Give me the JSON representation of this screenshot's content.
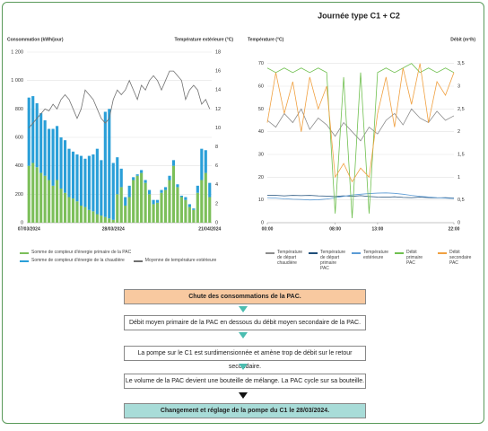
{
  "chart_data": [
    {
      "type": "bar",
      "stacked": true,
      "ylabel": "Consommation (kWh/jour)",
      "y2label": "Température extérieure (°C)",
      "categories": [
        "07/03/2024",
        null,
        null,
        null,
        null,
        null,
        null,
        null,
        null,
        null,
        null,
        null,
        null,
        null,
        null,
        null,
        null,
        null,
        null,
        null,
        null,
        "28/03/2024",
        null,
        null,
        null,
        null,
        null,
        null,
        null,
        null,
        null,
        null,
        null,
        null,
        null,
        null,
        null,
        null,
        null,
        null,
        null,
        null,
        null,
        null,
        null,
        "21/04/2024"
      ],
      "series": [
        {
          "name": "Somme de compteur d'énergie primaire de la PAC",
          "color": "#7cbf5a",
          "values": [
            400,
            420,
            390,
            350,
            330,
            300,
            260,
            300,
            240,
            210,
            180,
            170,
            150,
            120,
            110,
            90,
            80,
            60,
            50,
            40,
            30,
            20,
            200,
            250,
            120,
            180,
            300,
            330,
            350,
            280,
            200,
            130,
            140,
            210,
            230,
            300,
            400,
            250,
            180,
            160,
            110,
            90,
            210,
            300,
            350,
            180
          ]
        },
        {
          "name": "Somme de compteur d'énergie de la chaudière",
          "color": "#2a9fd8",
          "values": [
            480,
            470,
            450,
            420,
            390,
            360,
            400,
            380,
            360,
            370,
            340,
            330,
            330,
            350,
            340,
            380,
            400,
            460,
            390,
            740,
            770,
            400,
            260,
            130,
            60,
            80,
            20,
            10,
            20,
            20,
            30,
            30,
            20,
            20,
            20,
            30,
            40,
            20,
            10,
            20,
            20,
            10,
            50,
            220,
            160,
            100
          ]
        },
        {
          "name": "Moyenne de température extérieure",
          "color": "#707070",
          "type": "line",
          "axis": "y2",
          "values": [
            10,
            10.5,
            11,
            11.5,
            12,
            11.8,
            12.5,
            12,
            13,
            13.5,
            13,
            12,
            11,
            12,
            14,
            13.5,
            13,
            12,
            11,
            10.5,
            11,
            13,
            14,
            13.5,
            14,
            15,
            14,
            13,
            14.5,
            14,
            15,
            15.5,
            15,
            14,
            15,
            16,
            16,
            15.5,
            15,
            13,
            14,
            14.5,
            14,
            12.5,
            13,
            12
          ]
        }
      ],
      "ylim": [
        0,
        1200
      ],
      "yticks": [
        0,
        200,
        400,
        600,
        800,
        {
          "value": 1000,
          "label": "1 000"
        },
        {
          "value": 1200,
          "label": "1 200"
        }
      ],
      "y2lim": [
        0,
        18
      ],
      "y2ticks": [
        0,
        2,
        4,
        6,
        8,
        10,
        12,
        14,
        16,
        18
      ],
      "grid": true
    },
    {
      "type": "line",
      "title": "Journée type C1 + C2",
      "ylabel": "Température (°C)",
      "y2label": "Débit (m³/h)",
      "x": [
        0,
        1,
        2,
        3,
        4,
        5,
        6,
        7,
        8,
        9,
        10,
        11,
        12,
        13,
        14,
        15,
        16,
        17,
        18,
        19,
        20,
        21,
        22
      ],
      "xlim": [
        0,
        22
      ],
      "xticks": [
        {
          "value": 0,
          "label": "00:00"
        },
        {
          "value": 8,
          "label": "08:00"
        },
        {
          "value": 13,
          "label": "13:00"
        },
        {
          "value": 22,
          "label": "22:00"
        }
      ],
      "series": [
        {
          "name": "Température de départ chaudière",
          "color": "#8c8c8c",
          "values": [
            45,
            42,
            48,
            44,
            50,
            41,
            46,
            43,
            38,
            44,
            40,
            36,
            42,
            39,
            45,
            48,
            43,
            50,
            46,
            44,
            49,
            45,
            47
          ]
        },
        {
          "name": "Température de départ primaire PAC",
          "color": "#1f4e79",
          "values": [
            12,
            12,
            11.8,
            12,
            11.9,
            12,
            11.8,
            11.7,
            11.5,
            11.8,
            11.6,
            11.9,
            11.5,
            11.3,
            11.2,
            11.4,
            11.1,
            11,
            11.2,
            11,
            10.9,
            11,
            10.8
          ]
        },
        {
          "name": "Température extérieure",
          "color": "#5b9bd5",
          "values": [
            11,
            10.8,
            10.5,
            10.3,
            10.2,
            10,
            10.1,
            10.4,
            11,
            11.6,
            12.2,
            12.5,
            12.8,
            13,
            13.1,
            12.9,
            12.5,
            12,
            11.6,
            11.3,
            11,
            10.8,
            10.6
          ]
        },
        {
          "name": "Débit primaire PAC",
          "color": "#70c050",
          "axis": "y2",
          "values": [
            3.4,
            3.3,
            3.4,
            3.3,
            3.4,
            3.3,
            3.4,
            3.3,
            0.2,
            3.2,
            0.1,
            3.3,
            0.2,
            3.3,
            3.4,
            3.3,
            3.4,
            3.5,
            3.3,
            3.4,
            3.3,
            3.4,
            3.3
          ]
        },
        {
          "name": "Débit secondaire PAC",
          "color": "#f0a040",
          "axis": "y2",
          "values": [
            2.2,
            3.3,
            2.4,
            3.1,
            2.0,
            3.2,
            2.5,
            3.0,
            1.0,
            1.3,
            0.9,
            1.2,
            1.0,
            2.4,
            3.2,
            2.1,
            3.4,
            2.6,
            3.5,
            2.2,
            3.1,
            2.8,
            3.3
          ]
        }
      ],
      "ylim": [
        0,
        75
      ],
      "yticks": [
        0,
        10,
        20,
        30,
        40,
        50,
        60,
        70
      ],
      "y2lim": [
        0,
        3.75
      ],
      "y2ticks": [
        0,
        {
          "value": 0.5,
          "label": "0,5"
        },
        1,
        {
          "value": 1.5,
          "label": "1,5"
        },
        2,
        {
          "value": 2.5,
          "label": "2,5"
        },
        3,
        {
          "value": 3.5,
          "label": "3,5"
        }
      ],
      "grid": true
    }
  ],
  "diagram": {
    "steps": [
      "Chute des consommations de la PAC.",
      "Débit moyen primaire de la PAC en dessous du débit moyen secondaire de la PAC.",
      "La pompe sur le C1 est surdimensionnée et amène trop de débit sur le retour secondaire.",
      "Le volume de la PAC devient une bouteille de mélange. La PAC cycle sur sa bouteille.",
      "Changement et réglage de la pompe du C1 le 28/03/2024."
    ]
  }
}
